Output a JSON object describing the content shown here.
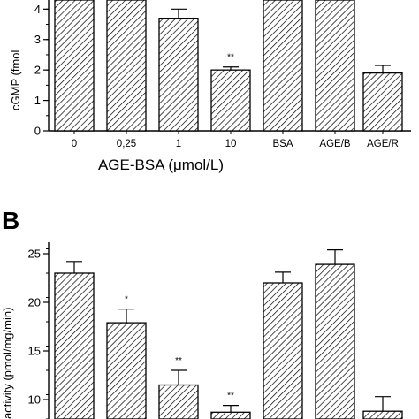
{
  "chart_data": [
    {
      "panel": "",
      "type": "bar",
      "categories": [
        "0",
        "0,25",
        "1",
        "10",
        "BSA",
        "AGE/B",
        "AGE/R"
      ],
      "values": [
        4.3,
        4.3,
        3.7,
        2.0,
        4.3,
        4.3,
        1.9
      ],
      "errors": [
        0,
        0,
        0.3,
        0.1,
        0,
        0,
        0.25
      ],
      "significance": [
        "",
        "",
        "",
        "**",
        "",
        "",
        ""
      ],
      "ylabel": "cGMP (fmol",
      "xlabel": "AGE-BSA (μmol/L)",
      "yticks": [
        "0",
        "1",
        "2",
        "3",
        "4"
      ],
      "ylim": [
        0,
        4.3
      ],
      "grid": false
    },
    {
      "panel": "B",
      "type": "bar",
      "categories": [
        "",
        "",
        "",
        "",
        "",
        "",
        ""
      ],
      "values": [
        23.0,
        17.9,
        11.5,
        8.7,
        22.0,
        23.9,
        8.8
      ],
      "errors": [
        1.2,
        1.4,
        1.5,
        0.7,
        1.1,
        1.5,
        1.5
      ],
      "significance": [
        "",
        "*",
        "**",
        "**",
        "",
        "",
        ""
      ],
      "ylabel": "activity (pmol/mg/min)",
      "yticks": [
        "25",
        "20",
        "15",
        "10"
      ],
      "ylim": [
        8.0,
        26.0
      ],
      "grid": false
    }
  ],
  "colors": {
    "ink": "#000000",
    "bar_fill": "#ffffff",
    "hatch": "#000000"
  }
}
